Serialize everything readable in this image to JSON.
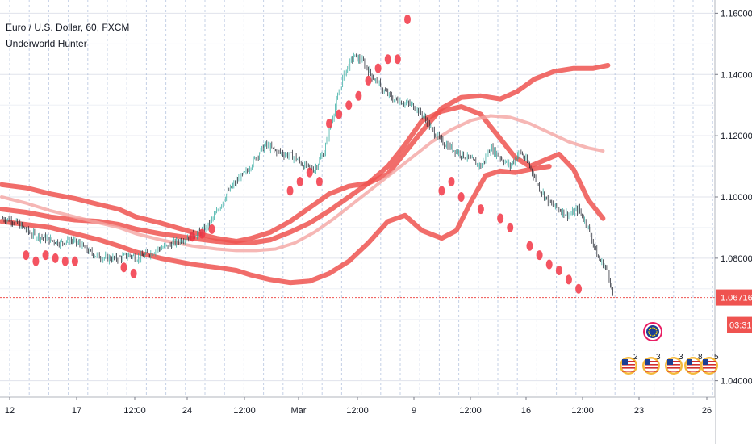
{
  "legend": {
    "symbol_title": "Euro / U.S. Dollar, 60, FXCM",
    "indicator_name": "Underworld Hunter"
  },
  "price_tag": {
    "value": "1.06716",
    "color": "#ef5350"
  },
  "countdown": "03:31",
  "event_icons": [
    {
      "name": "eu-flag-icon",
      "count": ""
    },
    {
      "name": "us-flag-icon",
      "count": "2"
    },
    {
      "name": "us-flag-icon",
      "count": "3"
    },
    {
      "name": "us-flag-icon",
      "count": "3"
    },
    {
      "name": "us-flag-icon",
      "count": "8"
    },
    {
      "name": "us-flag-icon",
      "count": "5"
    }
  ],
  "chart_data": {
    "type": "line",
    "title": "Euro / U.S. Dollar, 60, FXCM",
    "indicator": "Underworld Hunter",
    "ylim": [
      1.037,
      1.163
    ],
    "y_ticks": [
      "1.16000",
      "1.14000",
      "1.12000",
      "1.10000",
      "1.08000",
      "1.04000"
    ],
    "x_ticks": [
      "12",
      "17",
      "12:00",
      "24",
      "12:00",
      "Mar",
      "12:00",
      "9",
      "12:00",
      "16",
      "12:00",
      "23",
      "26"
    ],
    "last_price": 1.06716,
    "grid": true,
    "colors": {
      "up_candle": "#26a69a",
      "down_candle": "#131722",
      "band": "#ef5350",
      "band_light": "#f4a5a3",
      "dots": "#f23645"
    },
    "series": [
      {
        "name": "Underworld Hunter upper band",
        "points": [
          [
            0,
            1.104
          ],
          [
            10,
            1.103
          ],
          [
            20,
            1.101
          ],
          [
            30,
            1.0995
          ],
          [
            40,
            1.0975
          ],
          [
            48,
            1.096
          ],
          [
            55,
            1.0935
          ],
          [
            65,
            1.0915
          ],
          [
            78,
            1.0885
          ],
          [
            88,
            1.0865
          ],
          [
            96,
            1.0855
          ],
          [
            102,
            1.0865
          ],
          [
            110,
            1.0885
          ],
          [
            118,
            1.092
          ],
          [
            126,
            1.0965
          ],
          [
            134,
            1.101
          ],
          [
            142,
            1.1035
          ],
          [
            150,
            1.1045
          ],
          [
            158,
            1.1075
          ],
          [
            165,
            1.1145
          ],
          [
            172,
            1.1215
          ],
          [
            180,
            1.129
          ],
          [
            188,
            1.1325
          ],
          [
            196,
            1.133
          ],
          [
            204,
            1.132
          ],
          [
            211,
            1.1345
          ],
          [
            218,
            1.1385
          ],
          [
            226,
            1.141
          ],
          [
            234,
            1.142
          ],
          [
            242,
            1.142
          ],
          [
            248,
            1.143
          ]
        ]
      },
      {
        "name": "Underworld Hunter middle band",
        "points": [
          [
            0,
            1.096
          ],
          [
            10,
            1.095
          ],
          [
            20,
            1.0935
          ],
          [
            30,
            1.0925
          ],
          [
            40,
            1.092
          ],
          [
            48,
            1.091
          ],
          [
            55,
            1.0895
          ],
          [
            65,
            1.088
          ],
          [
            78,
            1.0865
          ],
          [
            88,
            1.0855
          ],
          [
            96,
            1.085
          ],
          [
            102,
            1.085
          ],
          [
            110,
            1.086
          ],
          [
            118,
            1.0885
          ],
          [
            126,
            1.0915
          ],
          [
            134,
            1.0955
          ],
          [
            142,
            1.1
          ],
          [
            150,
            1.1045
          ],
          [
            158,
            1.11
          ],
          [
            165,
            1.117
          ],
          [
            172,
            1.125
          ],
          [
            180,
            1.128
          ],
          [
            188,
            1.1295
          ],
          [
            196,
            1.127
          ],
          [
            204,
            1.119
          ],
          [
            210,
            1.113
          ],
          [
            216,
            1.11
          ],
          [
            222,
            1.112
          ],
          [
            228,
            1.114
          ],
          [
            234,
            1.109
          ],
          [
            240,
            1.099
          ],
          [
            246,
            1.093
          ]
        ]
      },
      {
        "name": "Underworld Hunter lower band",
        "points": [
          [
            0,
            1.092
          ],
          [
            10,
            1.091
          ],
          [
            20,
            1.09
          ],
          [
            30,
            1.088
          ],
          [
            40,
            1.086
          ],
          [
            48,
            1.084
          ],
          [
            55,
            1.082
          ],
          [
            65,
            1.08
          ],
          [
            78,
            1.078
          ],
          [
            88,
            1.077
          ],
          [
            96,
            1.076
          ],
          [
            102,
            1.0745
          ],
          [
            110,
            1.073
          ],
          [
            118,
            1.072
          ],
          [
            126,
            1.0725
          ],
          [
            134,
            1.075
          ],
          [
            142,
            1.079
          ],
          [
            150,
            1.085
          ],
          [
            158,
            1.092
          ],
          [
            165,
            1.094
          ],
          [
            172,
            1.089
          ],
          [
            180,
            1.0865
          ],
          [
            186,
            1.089
          ],
          [
            192,
            1.0985
          ],
          [
            198,
            1.107
          ],
          [
            204,
            1.1085
          ],
          [
            210,
            1.108
          ],
          [
            216,
            1.109
          ],
          [
            224,
            1.11
          ]
        ]
      },
      {
        "name": "Underworld Hunter baseline",
        "points": [
          [
            0,
            1.1
          ],
          [
            10,
            1.098
          ],
          [
            20,
            1.0955
          ],
          [
            30,
            1.0935
          ],
          [
            40,
            1.0915
          ],
          [
            48,
            1.09
          ],
          [
            55,
            1.088
          ],
          [
            65,
            1.086
          ],
          [
            78,
            1.084
          ],
          [
            88,
            1.083
          ],
          [
            96,
            1.0825
          ],
          [
            104,
            1.0825
          ],
          [
            112,
            1.083
          ],
          [
            120,
            1.085
          ],
          [
            128,
            1.0885
          ],
          [
            136,
            1.093
          ],
          [
            144,
            1.098
          ],
          [
            152,
            1.103
          ],
          [
            160,
            1.108
          ],
          [
            168,
            1.113
          ],
          [
            176,
            1.118
          ],
          [
            184,
            1.122
          ],
          [
            192,
            1.125
          ],
          [
            200,
            1.1265
          ],
          [
            208,
            1.126
          ],
          [
            216,
            1.124
          ],
          [
            224,
            1.121
          ],
          [
            232,
            1.118
          ],
          [
            240,
            1.116
          ],
          [
            246,
            1.115
          ]
        ]
      },
      {
        "name": "Close",
        "points": [
          [
            0,
            1.093
          ],
          [
            4,
            1.0925
          ],
          [
            8,
            1.0905
          ],
          [
            12,
            1.088
          ],
          [
            16,
            1.087
          ],
          [
            20,
            1.086
          ],
          [
            24,
            1.085
          ],
          [
            28,
            1.086
          ],
          [
            32,
            1.0845
          ],
          [
            36,
            1.082
          ],
          [
            40,
            1.0805
          ],
          [
            44,
            1.08
          ],
          [
            48,
            1.08
          ],
          [
            52,
            1.081
          ],
          [
            56,
            1.08
          ],
          [
            60,
            1.0815
          ],
          [
            64,
            1.083
          ],
          [
            68,
            1.084
          ],
          [
            72,
            1.0855
          ],
          [
            76,
            1.087
          ],
          [
            80,
            1.088
          ],
          [
            84,
            1.09
          ],
          [
            88,
            1.095
          ],
          [
            92,
            1.101
          ],
          [
            96,
            1.105
          ],
          [
            100,
            1.108
          ],
          [
            104,
            1.113
          ],
          [
            108,
            1.117
          ],
          [
            112,
            1.115
          ],
          [
            116,
            1.114
          ],
          [
            120,
            1.113
          ],
          [
            124,
            1.11
          ],
          [
            128,
            1.109
          ],
          [
            132,
            1.115
          ],
          [
            136,
            1.128
          ],
          [
            140,
            1.14
          ],
          [
            144,
            1.146
          ],
          [
            148,
            1.144
          ],
          [
            152,
            1.139
          ],
          [
            156,
            1.135
          ],
          [
            160,
            1.132
          ],
          [
            164,
            1.131
          ],
          [
            168,
            1.13
          ],
          [
            172,
            1.127
          ],
          [
            176,
            1.122
          ],
          [
            180,
            1.118
          ],
          [
            184,
            1.116
          ],
          [
            188,
            1.114
          ],
          [
            192,
            1.112
          ],
          [
            196,
            1.11
          ],
          [
            200,
            1.116
          ],
          [
            204,
            1.113
          ],
          [
            208,
            1.11
          ],
          [
            212,
            1.115
          ],
          [
            216,
            1.11
          ],
          [
            220,
            1.103
          ],
          [
            224,
            1.098
          ],
          [
            228,
            1.096
          ],
          [
            232,
            1.094
          ],
          [
            236,
            1.096
          ],
          [
            240,
            1.09
          ],
          [
            244,
            1.08
          ],
          [
            248,
            1.076
          ],
          [
            250,
            1.068
          ]
        ]
      }
    ],
    "signal_dots": [
      [
        10,
        1.081
      ],
      [
        14,
        1.079
      ],
      [
        18,
        1.081
      ],
      [
        22,
        1.08
      ],
      [
        26,
        1.079
      ],
      [
        30,
        1.079
      ],
      [
        50,
        1.077
      ],
      [
        54,
        1.075
      ],
      [
        78,
        1.087
      ],
      [
        82,
        1.088
      ],
      [
        86,
        1.0895
      ],
      [
        118,
        1.102
      ],
      [
        122,
        1.105
      ],
      [
        126,
        1.108
      ],
      [
        130,
        1.105
      ],
      [
        134,
        1.124
      ],
      [
        138,
        1.127
      ],
      [
        142,
        1.13
      ],
      [
        146,
        1.133
      ],
      [
        150,
        1.138
      ],
      [
        154,
        1.142
      ],
      [
        158,
        1.145
      ],
      [
        162,
        1.145
      ],
      [
        166,
        1.158
      ],
      [
        180,
        1.102
      ],
      [
        184,
        1.105
      ],
      [
        188,
        1.1
      ],
      [
        196,
        1.096
      ],
      [
        204,
        1.093
      ],
      [
        208,
        1.09
      ],
      [
        216,
        1.084
      ],
      [
        220,
        1.081
      ],
      [
        224,
        1.078
      ],
      [
        228,
        1.076
      ],
      [
        232,
        1.073
      ],
      [
        236,
        1.07
      ]
    ]
  }
}
